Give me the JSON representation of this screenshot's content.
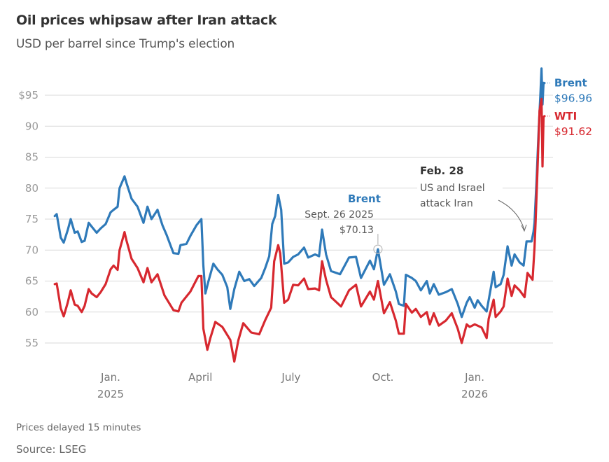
{
  "header": {
    "title": "Oil prices whipsaw after Iran attack",
    "subtitle": "USD per barrel since Trump's election"
  },
  "footer": {
    "note": "Prices delayed 15 minutes",
    "source": "Source: LSEG"
  },
  "chart_data": {
    "type": "line",
    "title": "Oil prices whipsaw after Iran attack",
    "subtitle": "USD per barrel since Trump's election",
    "xlabel": "",
    "ylabel": "USD per barrel",
    "xlim": [
      "2024-11-06",
      "2026-03-12"
    ],
    "ylim": [
      52,
      99.5
    ],
    "grid": true,
    "y_ticks": [
      {
        "value": 95,
        "label": "$95"
      },
      {
        "value": 90,
        "label": "90"
      },
      {
        "value": 85,
        "label": "85"
      },
      {
        "value": 80,
        "label": "80"
      },
      {
        "value": 75,
        "label": "75"
      },
      {
        "value": 70,
        "label": "70"
      },
      {
        "value": 65,
        "label": "65"
      },
      {
        "value": 60,
        "label": "60"
      },
      {
        "value": 55,
        "label": "55"
      }
    ],
    "x_ticks": [
      {
        "date": "2025-01-01",
        "label": "Jan.",
        "sublabel": "2025"
      },
      {
        "date": "2025-04-01",
        "label": "April",
        "sublabel": ""
      },
      {
        "date": "2025-07-01",
        "label": "July",
        "sublabel": ""
      },
      {
        "date": "2025-10-01",
        "label": "Oct.",
        "sublabel": ""
      },
      {
        "date": "2026-01-01",
        "label": "Jan.",
        "sublabel": "2026"
      }
    ],
    "series": [
      {
        "name": "Brent",
        "color": "#2f7ab9",
        "last_value_label": "$96.96",
        "points": [
          [
            "2024-11-06",
            75.5
          ],
          [
            "2024-11-08",
            75.8
          ],
          [
            "2024-11-12",
            72.0
          ],
          [
            "2024-11-15",
            71.2
          ],
          [
            "2024-11-19",
            73.2
          ],
          [
            "2024-11-22",
            75.0
          ],
          [
            "2024-11-26",
            72.8
          ],
          [
            "2024-11-29",
            73.0
          ],
          [
            "2024-12-03",
            71.3
          ],
          [
            "2024-12-06",
            71.5
          ],
          [
            "2024-12-10",
            74.4
          ],
          [
            "2024-12-13",
            73.8
          ],
          [
            "2024-12-18",
            72.8
          ],
          [
            "2024-12-22",
            73.5
          ],
          [
            "2024-12-27",
            74.2
          ],
          [
            "2025-01-01",
            76.1
          ],
          [
            "2025-01-04",
            76.5
          ],
          [
            "2025-01-08",
            77.0
          ],
          [
            "2025-01-10",
            80.0
          ],
          [
            "2025-01-15",
            81.9
          ],
          [
            "2025-01-17",
            80.8
          ],
          [
            "2025-01-22",
            78.3
          ],
          [
            "2025-01-28",
            77.0
          ],
          [
            "2025-02-03",
            74.4
          ],
          [
            "2025-02-07",
            77.0
          ],
          [
            "2025-02-11",
            75.0
          ],
          [
            "2025-02-17",
            76.5
          ],
          [
            "2025-02-22",
            74.0
          ],
          [
            "2025-02-26",
            72.5
          ],
          [
            "2025-03-05",
            69.5
          ],
          [
            "2025-03-10",
            69.4
          ],
          [
            "2025-03-12",
            70.8
          ],
          [
            "2025-03-18",
            71.0
          ],
          [
            "2025-03-22",
            72.3
          ],
          [
            "2025-03-28",
            74.0
          ],
          [
            "2025-04-02",
            75.0
          ],
          [
            "2025-04-04",
            67.5
          ],
          [
            "2025-04-06",
            63.0
          ],
          [
            "2025-04-09",
            64.9
          ],
          [
            "2025-04-14",
            67.8
          ],
          [
            "2025-04-18",
            66.9
          ],
          [
            "2025-04-23",
            66.0
          ],
          [
            "2025-04-28",
            64.0
          ],
          [
            "2025-05-01",
            60.5
          ],
          [
            "2025-05-05",
            63.7
          ],
          [
            "2025-05-10",
            66.5
          ],
          [
            "2025-05-15",
            65.0
          ],
          [
            "2025-05-20",
            65.3
          ],
          [
            "2025-05-25",
            64.2
          ],
          [
            "2025-06-01",
            65.5
          ],
          [
            "2025-06-05",
            67.1
          ],
          [
            "2025-06-09",
            69.0
          ],
          [
            "2025-06-12",
            74.2
          ],
          [
            "2025-06-15",
            75.5
          ],
          [
            "2025-06-18",
            78.9
          ],
          [
            "2025-06-21",
            76.5
          ],
          [
            "2025-06-24",
            67.8
          ],
          [
            "2025-06-28",
            68.0
          ],
          [
            "2025-07-03",
            68.9
          ],
          [
            "2025-07-08",
            69.3
          ],
          [
            "2025-07-14",
            70.4
          ],
          [
            "2025-07-18",
            68.8
          ],
          [
            "2025-07-25",
            69.3
          ],
          [
            "2025-07-29",
            69.0
          ],
          [
            "2025-08-01",
            73.3
          ],
          [
            "2025-08-05",
            69.3
          ],
          [
            "2025-08-10",
            66.6
          ],
          [
            "2025-08-19",
            66.1
          ],
          [
            "2025-08-28",
            68.8
          ],
          [
            "2025-09-04",
            68.9
          ],
          [
            "2025-09-09",
            65.5
          ],
          [
            "2025-09-18",
            68.3
          ],
          [
            "2025-09-22",
            66.9
          ],
          [
            "2025-09-26",
            70.13
          ],
          [
            "2025-10-02",
            64.4
          ],
          [
            "2025-10-08",
            66.1
          ],
          [
            "2025-10-14",
            63.3
          ],
          [
            "2025-10-17",
            61.3
          ],
          [
            "2025-10-22",
            61.0
          ],
          [
            "2025-10-24",
            66.0
          ],
          [
            "2025-10-30",
            65.5
          ],
          [
            "2025-11-03",
            65.0
          ],
          [
            "2025-11-08",
            63.5
          ],
          [
            "2025-11-14",
            65.0
          ],
          [
            "2025-11-17",
            63.0
          ],
          [
            "2025-11-21",
            64.5
          ],
          [
            "2025-11-26",
            62.8
          ],
          [
            "2025-12-03",
            63.2
          ],
          [
            "2025-12-09",
            63.7
          ],
          [
            "2025-12-15",
            61.3
          ],
          [
            "2025-12-19",
            59.2
          ],
          [
            "2025-12-24",
            61.5
          ],
          [
            "2025-12-27",
            62.4
          ],
          [
            "2026-01-01",
            60.7
          ],
          [
            "2026-01-04",
            61.9
          ],
          [
            "2026-01-08",
            61.0
          ],
          [
            "2026-01-13",
            60.1
          ],
          [
            "2026-01-17",
            63.7
          ],
          [
            "2026-01-20",
            66.5
          ],
          [
            "2026-01-22",
            64.0
          ],
          [
            "2026-01-27",
            64.5
          ],
          [
            "2026-01-30",
            66.0
          ],
          [
            "2026-02-03",
            70.6
          ],
          [
            "2026-02-07",
            67.5
          ],
          [
            "2026-02-10",
            69.3
          ],
          [
            "2026-02-15",
            68.0
          ],
          [
            "2026-02-19",
            67.5
          ],
          [
            "2026-02-22",
            71.4
          ],
          [
            "2026-02-27",
            71.4
          ],
          [
            "2026-03-01",
            73.0
          ],
          [
            "2026-03-02",
            74.4
          ],
          [
            "2026-03-04",
            81.2
          ],
          [
            "2026-03-06",
            88.8
          ],
          [
            "2026-03-08",
            95.6
          ],
          [
            "2026-03-09",
            99.3
          ],
          [
            "2026-03-10",
            93.5
          ],
          [
            "2026-03-11",
            97.0
          ],
          [
            "2026-03-12",
            96.96
          ]
        ]
      },
      {
        "name": "WTI",
        "color": "#d7282f",
        "last_value_label": "$91.62",
        "points": [
          [
            "2024-11-06",
            64.5
          ],
          [
            "2024-11-08",
            64.6
          ],
          [
            "2024-11-12",
            60.6
          ],
          [
            "2024-11-15",
            59.3
          ],
          [
            "2024-11-19",
            61.5
          ],
          [
            "2024-11-22",
            63.5
          ],
          [
            "2024-11-26",
            61.2
          ],
          [
            "2024-11-29",
            61.0
          ],
          [
            "2024-12-03",
            60.0
          ],
          [
            "2024-12-06",
            61.0
          ],
          [
            "2024-12-10",
            63.7
          ],
          [
            "2024-12-13",
            63.0
          ],
          [
            "2024-12-18",
            62.4
          ],
          [
            "2024-12-22",
            63.2
          ],
          [
            "2024-12-27",
            64.5
          ],
          [
            "2025-01-01",
            66.9
          ],
          [
            "2025-01-04",
            67.5
          ],
          [
            "2025-01-08",
            66.8
          ],
          [
            "2025-01-10",
            70.0
          ],
          [
            "2025-01-15",
            72.9
          ],
          [
            "2025-01-17",
            71.5
          ],
          [
            "2025-01-22",
            68.6
          ],
          [
            "2025-01-28",
            67.1
          ],
          [
            "2025-02-03",
            64.8
          ],
          [
            "2025-02-07",
            67.1
          ],
          [
            "2025-02-11",
            64.8
          ],
          [
            "2025-02-17",
            66.1
          ],
          [
            "2025-02-24",
            62.7
          ],
          [
            "2025-03-05",
            60.3
          ],
          [
            "2025-03-10",
            60.1
          ],
          [
            "2025-03-13",
            61.5
          ],
          [
            "2025-03-22",
            63.3
          ],
          [
            "2025-03-30",
            65.8
          ],
          [
            "2025-04-02",
            65.8
          ],
          [
            "2025-04-04",
            57.3
          ],
          [
            "2025-04-08",
            53.9
          ],
          [
            "2025-04-11",
            55.8
          ],
          [
            "2025-04-16",
            58.4
          ],
          [
            "2025-04-23",
            57.6
          ],
          [
            "2025-05-01",
            55.5
          ],
          [
            "2025-05-05",
            52.0
          ],
          [
            "2025-05-09",
            55.4
          ],
          [
            "2025-05-14",
            58.2
          ],
          [
            "2025-05-22",
            56.7
          ],
          [
            "2025-05-30",
            56.4
          ],
          [
            "2025-06-05",
            58.7
          ],
          [
            "2025-06-11",
            60.7
          ],
          [
            "2025-06-14",
            68.2
          ],
          [
            "2025-06-18",
            70.8
          ],
          [
            "2025-06-20",
            69.5
          ],
          [
            "2025-06-24",
            61.5
          ],
          [
            "2025-06-28",
            62.0
          ],
          [
            "2025-07-03",
            64.4
          ],
          [
            "2025-07-08",
            64.3
          ],
          [
            "2025-07-14",
            65.4
          ],
          [
            "2025-07-18",
            63.7
          ],
          [
            "2025-07-25",
            63.8
          ],
          [
            "2025-07-29",
            63.5
          ],
          [
            "2025-08-01",
            68.2
          ],
          [
            "2025-08-05",
            65.2
          ],
          [
            "2025-08-10",
            62.4
          ],
          [
            "2025-08-20",
            60.9
          ],
          [
            "2025-08-28",
            63.5
          ],
          [
            "2025-09-04",
            64.4
          ],
          [
            "2025-09-09",
            60.9
          ],
          [
            "2025-09-18",
            63.3
          ],
          [
            "2025-09-22",
            62.0
          ],
          [
            "2025-09-26",
            65.0
          ],
          [
            "2025-10-02",
            59.8
          ],
          [
            "2025-10-08",
            61.6
          ],
          [
            "2025-10-14",
            58.6
          ],
          [
            "2025-10-17",
            56.5
          ],
          [
            "2025-10-22",
            56.5
          ],
          [
            "2025-10-24",
            61.3
          ],
          [
            "2025-10-30",
            59.9
          ],
          [
            "2025-11-03",
            60.5
          ],
          [
            "2025-11-08",
            59.2
          ],
          [
            "2025-11-14",
            60.0
          ],
          [
            "2025-11-17",
            58.0
          ],
          [
            "2025-11-21",
            59.8
          ],
          [
            "2025-11-26",
            57.8
          ],
          [
            "2025-12-03",
            58.6
          ],
          [
            "2025-12-09",
            59.8
          ],
          [
            "2025-12-15",
            57.3
          ],
          [
            "2025-12-19",
            55.0
          ],
          [
            "2025-12-24",
            58.0
          ],
          [
            "2025-12-27",
            57.6
          ],
          [
            "2026-01-01",
            58.0
          ],
          [
            "2026-01-04",
            57.8
          ],
          [
            "2026-01-08",
            57.5
          ],
          [
            "2026-01-13",
            55.8
          ],
          [
            "2026-01-15",
            58.9
          ],
          [
            "2026-01-20",
            62.0
          ],
          [
            "2026-01-22",
            59.2
          ],
          [
            "2026-01-27",
            60.1
          ],
          [
            "2026-01-30",
            60.9
          ],
          [
            "2026-02-03",
            65.4
          ],
          [
            "2026-02-07",
            62.6
          ],
          [
            "2026-02-10",
            64.3
          ],
          [
            "2026-02-15",
            63.5
          ],
          [
            "2026-02-20",
            62.4
          ],
          [
            "2026-02-23",
            66.3
          ],
          [
            "2026-02-28",
            65.2
          ],
          [
            "2026-03-02",
            70.4
          ],
          [
            "2026-03-03",
            74.4
          ],
          [
            "2026-03-05",
            83.1
          ],
          [
            "2026-03-07",
            92.5
          ],
          [
            "2026-03-09",
            94.4
          ],
          [
            "2026-03-10",
            83.5
          ],
          [
            "2026-03-11",
            91.5
          ],
          [
            "2026-03-12",
            91.62
          ]
        ]
      }
    ],
    "annotations": [
      {
        "id": "brent-sept",
        "series": "Brent",
        "date": "2025-09-26",
        "value": 70.13,
        "title": "Brent",
        "lines": [
          "Sept. 26 2025",
          "$70.13"
        ]
      },
      {
        "id": "feb28",
        "date": "2026-02-28",
        "value": 71.5,
        "title": "Feb. 28",
        "lines": [
          "US and Israel",
          "attack Iran"
        ]
      }
    ]
  }
}
